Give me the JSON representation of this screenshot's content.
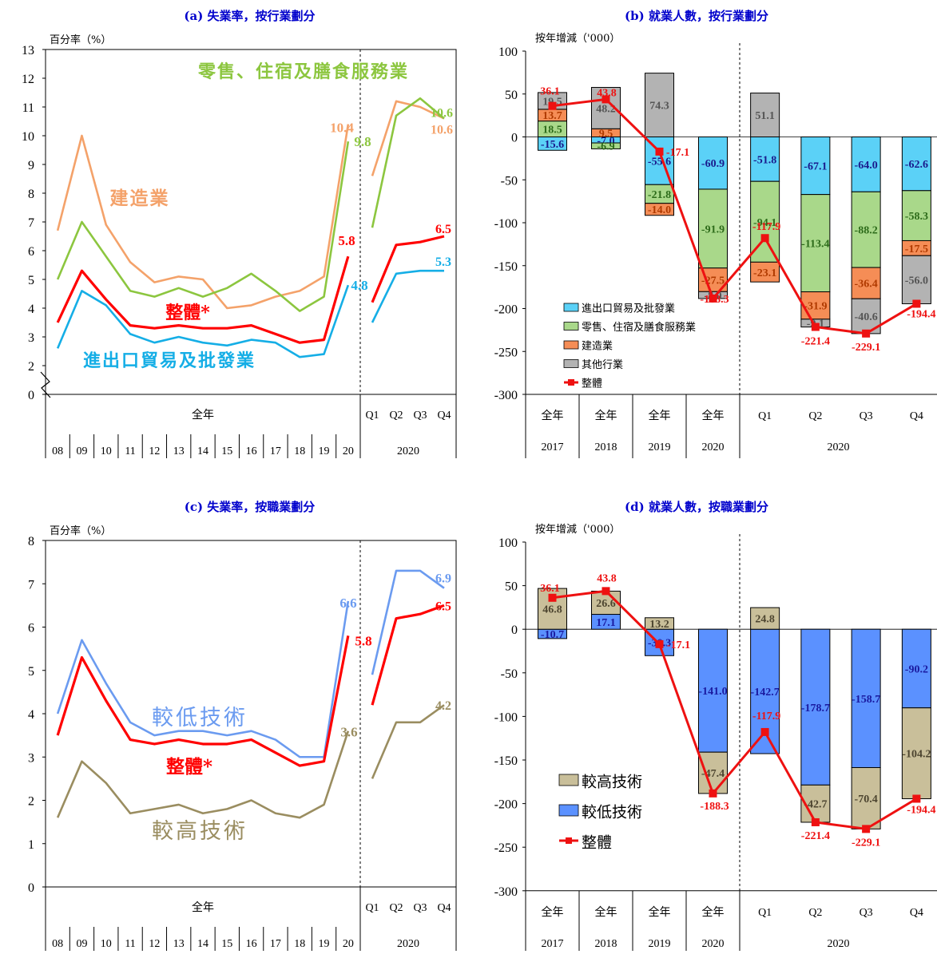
{
  "colors": {
    "trade": "#15aee6",
    "retail": "#8cc63f",
    "construction": "#f4a26a",
    "overall": "#ff0000",
    "lower_skilled": "#6b9bf0",
    "higher_skilled": "#9a8d60",
    "bar_trade": "#5bd1f7",
    "bar_retail": "#a9d88a",
    "bar_construction": "#f58d56",
    "bar_other": "#b3b3b3",
    "bar_higher": "#c9bf9a",
    "bar_lower": "#5b91ff",
    "title": "#0000cc"
  },
  "chart_data": [
    {
      "id": "a",
      "type": "line",
      "title": "(a) 失業率，按行業劃分",
      "ylabel": "百分率（%）",
      "ylim": [
        0,
        13
      ],
      "yticks": [
        0,
        2,
        3,
        4,
        5,
        6,
        7,
        8,
        9,
        10,
        11,
        12,
        13
      ],
      "axis_break": true,
      "x_annual": [
        "08",
        "09",
        "10",
        "11",
        "12",
        "13",
        "14",
        "15",
        "16",
        "17",
        "18",
        "19",
        "20"
      ],
      "x_quarters": [
        "Q1",
        "Q2",
        "Q3",
        "Q4"
      ],
      "x_group_labels": [
        "全年",
        "2020"
      ],
      "series": [
        {
          "name": "建造業",
          "key": "construction",
          "annual": [
            6.7,
            10.0,
            6.9,
            5.6,
            4.9,
            5.1,
            5.0,
            4.0,
            4.1,
            4.4,
            4.6,
            5.1,
            10.4
          ],
          "quarterly": [
            8.6,
            11.2,
            11.0,
            10.6
          ]
        },
        {
          "name": "零售、住宿及膳食服務業",
          "key": "retail",
          "annual": [
            5.0,
            7.0,
            5.8,
            4.6,
            4.4,
            4.7,
            4.4,
            4.7,
            5.2,
            4.6,
            3.9,
            4.4,
            9.8
          ],
          "quarterly": [
            6.8,
            10.7,
            11.3,
            10.6
          ]
        },
        {
          "name": "整體*",
          "key": "overall",
          "annual": [
            3.5,
            5.3,
            4.3,
            3.4,
            3.3,
            3.4,
            3.3,
            3.3,
            3.4,
            3.1,
            2.8,
            2.9,
            5.8
          ],
          "quarterly": [
            4.2,
            6.2,
            6.3,
            6.5
          ]
        },
        {
          "name": "進出口貿易及批發業",
          "key": "trade",
          "annual": [
            2.6,
            4.6,
            4.1,
            3.1,
            2.8,
            3.0,
            2.8,
            2.7,
            2.9,
            2.8,
            2.3,
            2.4,
            4.8
          ],
          "quarterly": [
            3.5,
            5.2,
            5.3,
            5.3
          ]
        }
      ],
      "end_labels": [
        "10.4",
        "9.8",
        "5.8",
        "4.8",
        "10.6",
        "10.6",
        "6.5",
        "5.3"
      ]
    },
    {
      "id": "b",
      "type": "bar",
      "title": "(b) 就業人數，按行業劃分",
      "ylabel": "按年增減（'000）",
      "ylim": [
        -300,
        100
      ],
      "yticks": [
        100,
        50,
        0,
        -50,
        -100,
        -150,
        -200,
        -250,
        -300
      ],
      "categories": [
        "全年",
        "全年",
        "全年",
        "全年",
        "Q1",
        "Q2",
        "Q3",
        "Q4"
      ],
      "years": [
        "2017",
        "2018",
        "2019",
        "2020",
        "2020"
      ],
      "series": [
        {
          "name": "進出口貿易及批發業",
          "values": [
            -15.6,
            -7.0,
            -55.6,
            -60.9,
            -51.8,
            -67.1,
            -64.0,
            -62.6
          ]
        },
        {
          "name": "零售、住宿及膳食服務業",
          "values": [
            18.5,
            -6.9,
            -21.8,
            -91.9,
            -94.1,
            -113.4,
            -88.2,
            -58.3
          ]
        },
        {
          "name": "建造業",
          "values": [
            13.7,
            9.5,
            -14.0,
            -27.5,
            -23.1,
            -31.9,
            -36.4,
            -17.5
          ]
        },
        {
          "name": "其他行業",
          "values": [
            19.5,
            48.2,
            74.3,
            -8.0,
            51.1,
            -9.1,
            -40.6,
            -56.0
          ]
        },
        {
          "name": "整體",
          "values": [
            36.1,
            43.8,
            -17.1,
            -188.3,
            -117.9,
            -221.4,
            -229.1,
            -194.4
          ]
        }
      ]
    },
    {
      "id": "c",
      "type": "line",
      "title": "(c) 失業率，按職業劃分",
      "ylabel": "百分率（%）",
      "ylim": [
        0,
        8
      ],
      "yticks": [
        0,
        1,
        2,
        3,
        4,
        5,
        6,
        7,
        8
      ],
      "x_annual": [
        "08",
        "09",
        "10",
        "11",
        "12",
        "13",
        "14",
        "15",
        "16",
        "17",
        "18",
        "19",
        "20"
      ],
      "x_quarters": [
        "Q1",
        "Q2",
        "Q3",
        "Q4"
      ],
      "x_group_labels": [
        "全年",
        "2020"
      ],
      "series": [
        {
          "name": "較低技術",
          "key": "lower_skilled",
          "annual": [
            4.0,
            5.7,
            4.7,
            3.8,
            3.5,
            3.6,
            3.6,
            3.5,
            3.6,
            3.4,
            3.0,
            3.0,
            6.6
          ],
          "quarterly": [
            4.9,
            7.3,
            7.3,
            6.9
          ]
        },
        {
          "name": "整體*",
          "key": "overall",
          "annual": [
            3.5,
            5.3,
            4.3,
            3.4,
            3.3,
            3.4,
            3.3,
            3.3,
            3.4,
            3.1,
            2.8,
            2.9,
            5.8
          ],
          "quarterly": [
            4.2,
            6.2,
            6.3,
            6.5
          ]
        },
        {
          "name": "較高技術",
          "key": "higher_skilled",
          "annual": [
            1.6,
            2.9,
            2.4,
            1.7,
            1.8,
            1.9,
            1.7,
            1.8,
            2.0,
            1.7,
            1.6,
            1.9,
            3.6
          ],
          "quarterly": [
            2.5,
            3.8,
            3.8,
            4.2
          ]
        }
      ],
      "end_labels": [
        "6.6",
        "5.8",
        "3.6",
        "6.9",
        "6.5",
        "4.2"
      ]
    },
    {
      "id": "d",
      "type": "bar",
      "title": "(d) 就業人數，按職業劃分",
      "ylabel": "按年增減（'000）",
      "ylim": [
        -300,
        100
      ],
      "yticks": [
        100,
        50,
        0,
        -50,
        -100,
        -150,
        -200,
        -250,
        -300
      ],
      "categories": [
        "全年",
        "全年",
        "全年",
        "全年",
        "Q1",
        "Q2",
        "Q3",
        "Q4"
      ],
      "years": [
        "2017",
        "2018",
        "2019",
        "2020",
        "2020"
      ],
      "series": [
        {
          "name": "較高技術",
          "values": [
            46.8,
            26.6,
            13.2,
            -47.4,
            24.8,
            -42.7,
            -70.4,
            -104.2
          ]
        },
        {
          "name": "較低技術",
          "values": [
            -10.7,
            17.1,
            -30.3,
            -141.0,
            -142.7,
            -178.7,
            -158.7,
            -90.2
          ]
        },
        {
          "name": "整體",
          "values": [
            36.1,
            43.8,
            -17.1,
            -188.3,
            -117.9,
            -221.4,
            -229.1,
            -194.4
          ]
        }
      ]
    }
  ]
}
